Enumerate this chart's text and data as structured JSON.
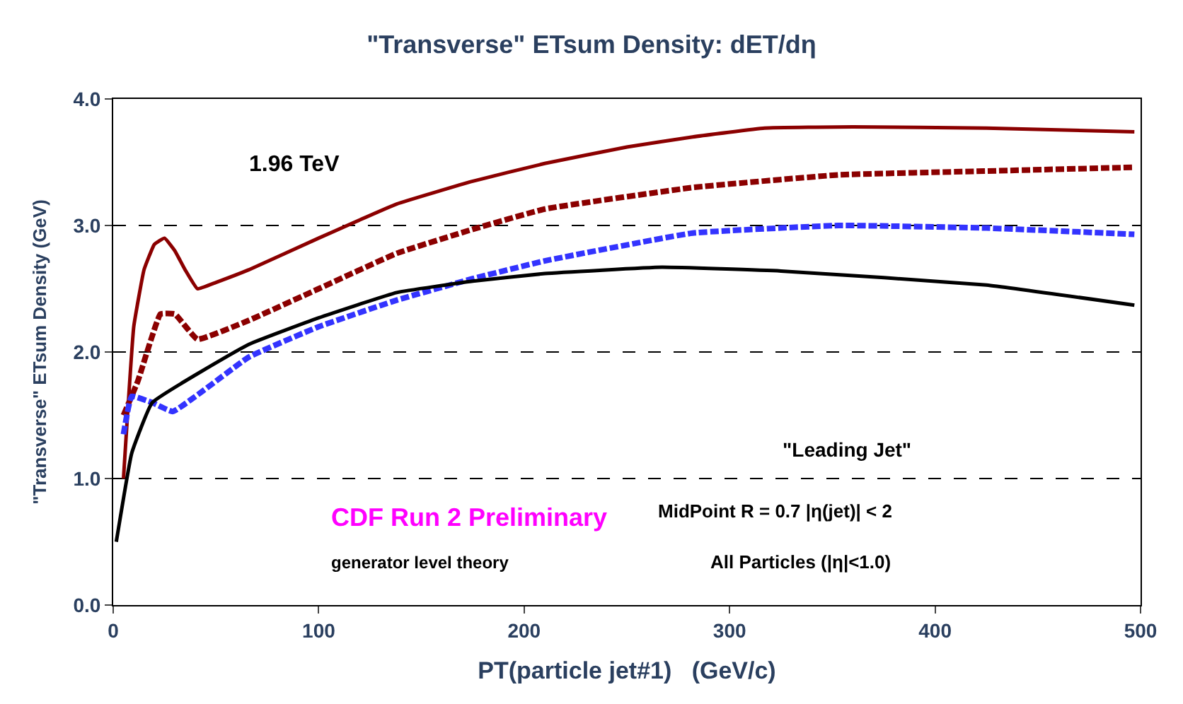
{
  "chart_data": {
    "type": "line",
    "title": "\"Transverse\" ETsum Density: dET/dη",
    "xlabel": "PT(particle jet#1)   (GeV/c)",
    "ylabel": "\"Transverse\" ETsum Density (GeV)",
    "series": [
      {
        "color": "#8b0000",
        "line_style": "solid",
        "x": [
          5,
          10,
          15,
          20,
          25,
          30,
          35,
          41,
          50,
          66,
          100,
          138,
          175,
          210,
          250,
          282,
          317,
          360,
          425,
          497
        ],
        "values": [
          1.0,
          2.2,
          2.65,
          2.85,
          2.9,
          2.8,
          2.65,
          2.5,
          2.55,
          2.65,
          2.9,
          3.17,
          3.35,
          3.49,
          3.62,
          3.7,
          3.77,
          3.78,
          3.77,
          3.74
        ]
      },
      {
        "color": "#8b0000",
        "line_style": "dashed",
        "x": [
          5,
          12,
          23,
          30,
          41,
          66,
          100,
          138,
          175,
          210,
          282,
          353,
          425,
          497
        ],
        "values": [
          1.5,
          1.77,
          2.3,
          2.3,
          2.1,
          2.25,
          2.5,
          2.78,
          2.97,
          3.13,
          3.3,
          3.4,
          3.43,
          3.46
        ]
      },
      {
        "color": "#3333ff",
        "line_style": "dashed",
        "x": [
          5,
          9,
          19,
          29,
          66,
          100,
          138,
          175,
          210,
          282,
          353,
          425,
          497
        ],
        "values": [
          1.35,
          1.65,
          1.6,
          1.53,
          1.96,
          2.2,
          2.41,
          2.58,
          2.72,
          2.94,
          3.0,
          2.98,
          2.93
        ]
      },
      {
        "color": "#000000",
        "line_style": "solid",
        "x": [
          1.5,
          9,
          19,
          66,
          100,
          138,
          175,
          210,
          267,
          325,
          425,
          497
        ],
        "values": [
          0.5,
          1.2,
          1.6,
          2.06,
          2.27,
          2.47,
          2.56,
          2.62,
          2.67,
          2.64,
          2.53,
          2.37
        ]
      }
    ],
    "annotations": [
      "1.96 TeV",
      "\"Leading Jet\"",
      "CDF Run 2 Preliminary",
      "generator level theory",
      "MidPoint R = 0.7 |η(jet)| < 2",
      "All Particles (|η|<1.0)"
    ],
    "xlim": [
      0,
      500
    ],
    "xticks": [
      0,
      100,
      200,
      300,
      400,
      500
    ],
    "ylim": [
      0,
      4
    ],
    "yticks": [
      {
        "value": 0,
        "label": "0.0"
      },
      {
        "value": 1,
        "label": "1.0"
      },
      {
        "value": 2,
        "label": "2.0"
      },
      {
        "value": 3,
        "label": "3.0"
      },
      {
        "value": 4,
        "label": "4.0"
      }
    ],
    "grid": "y",
    "marker": "none"
  }
}
